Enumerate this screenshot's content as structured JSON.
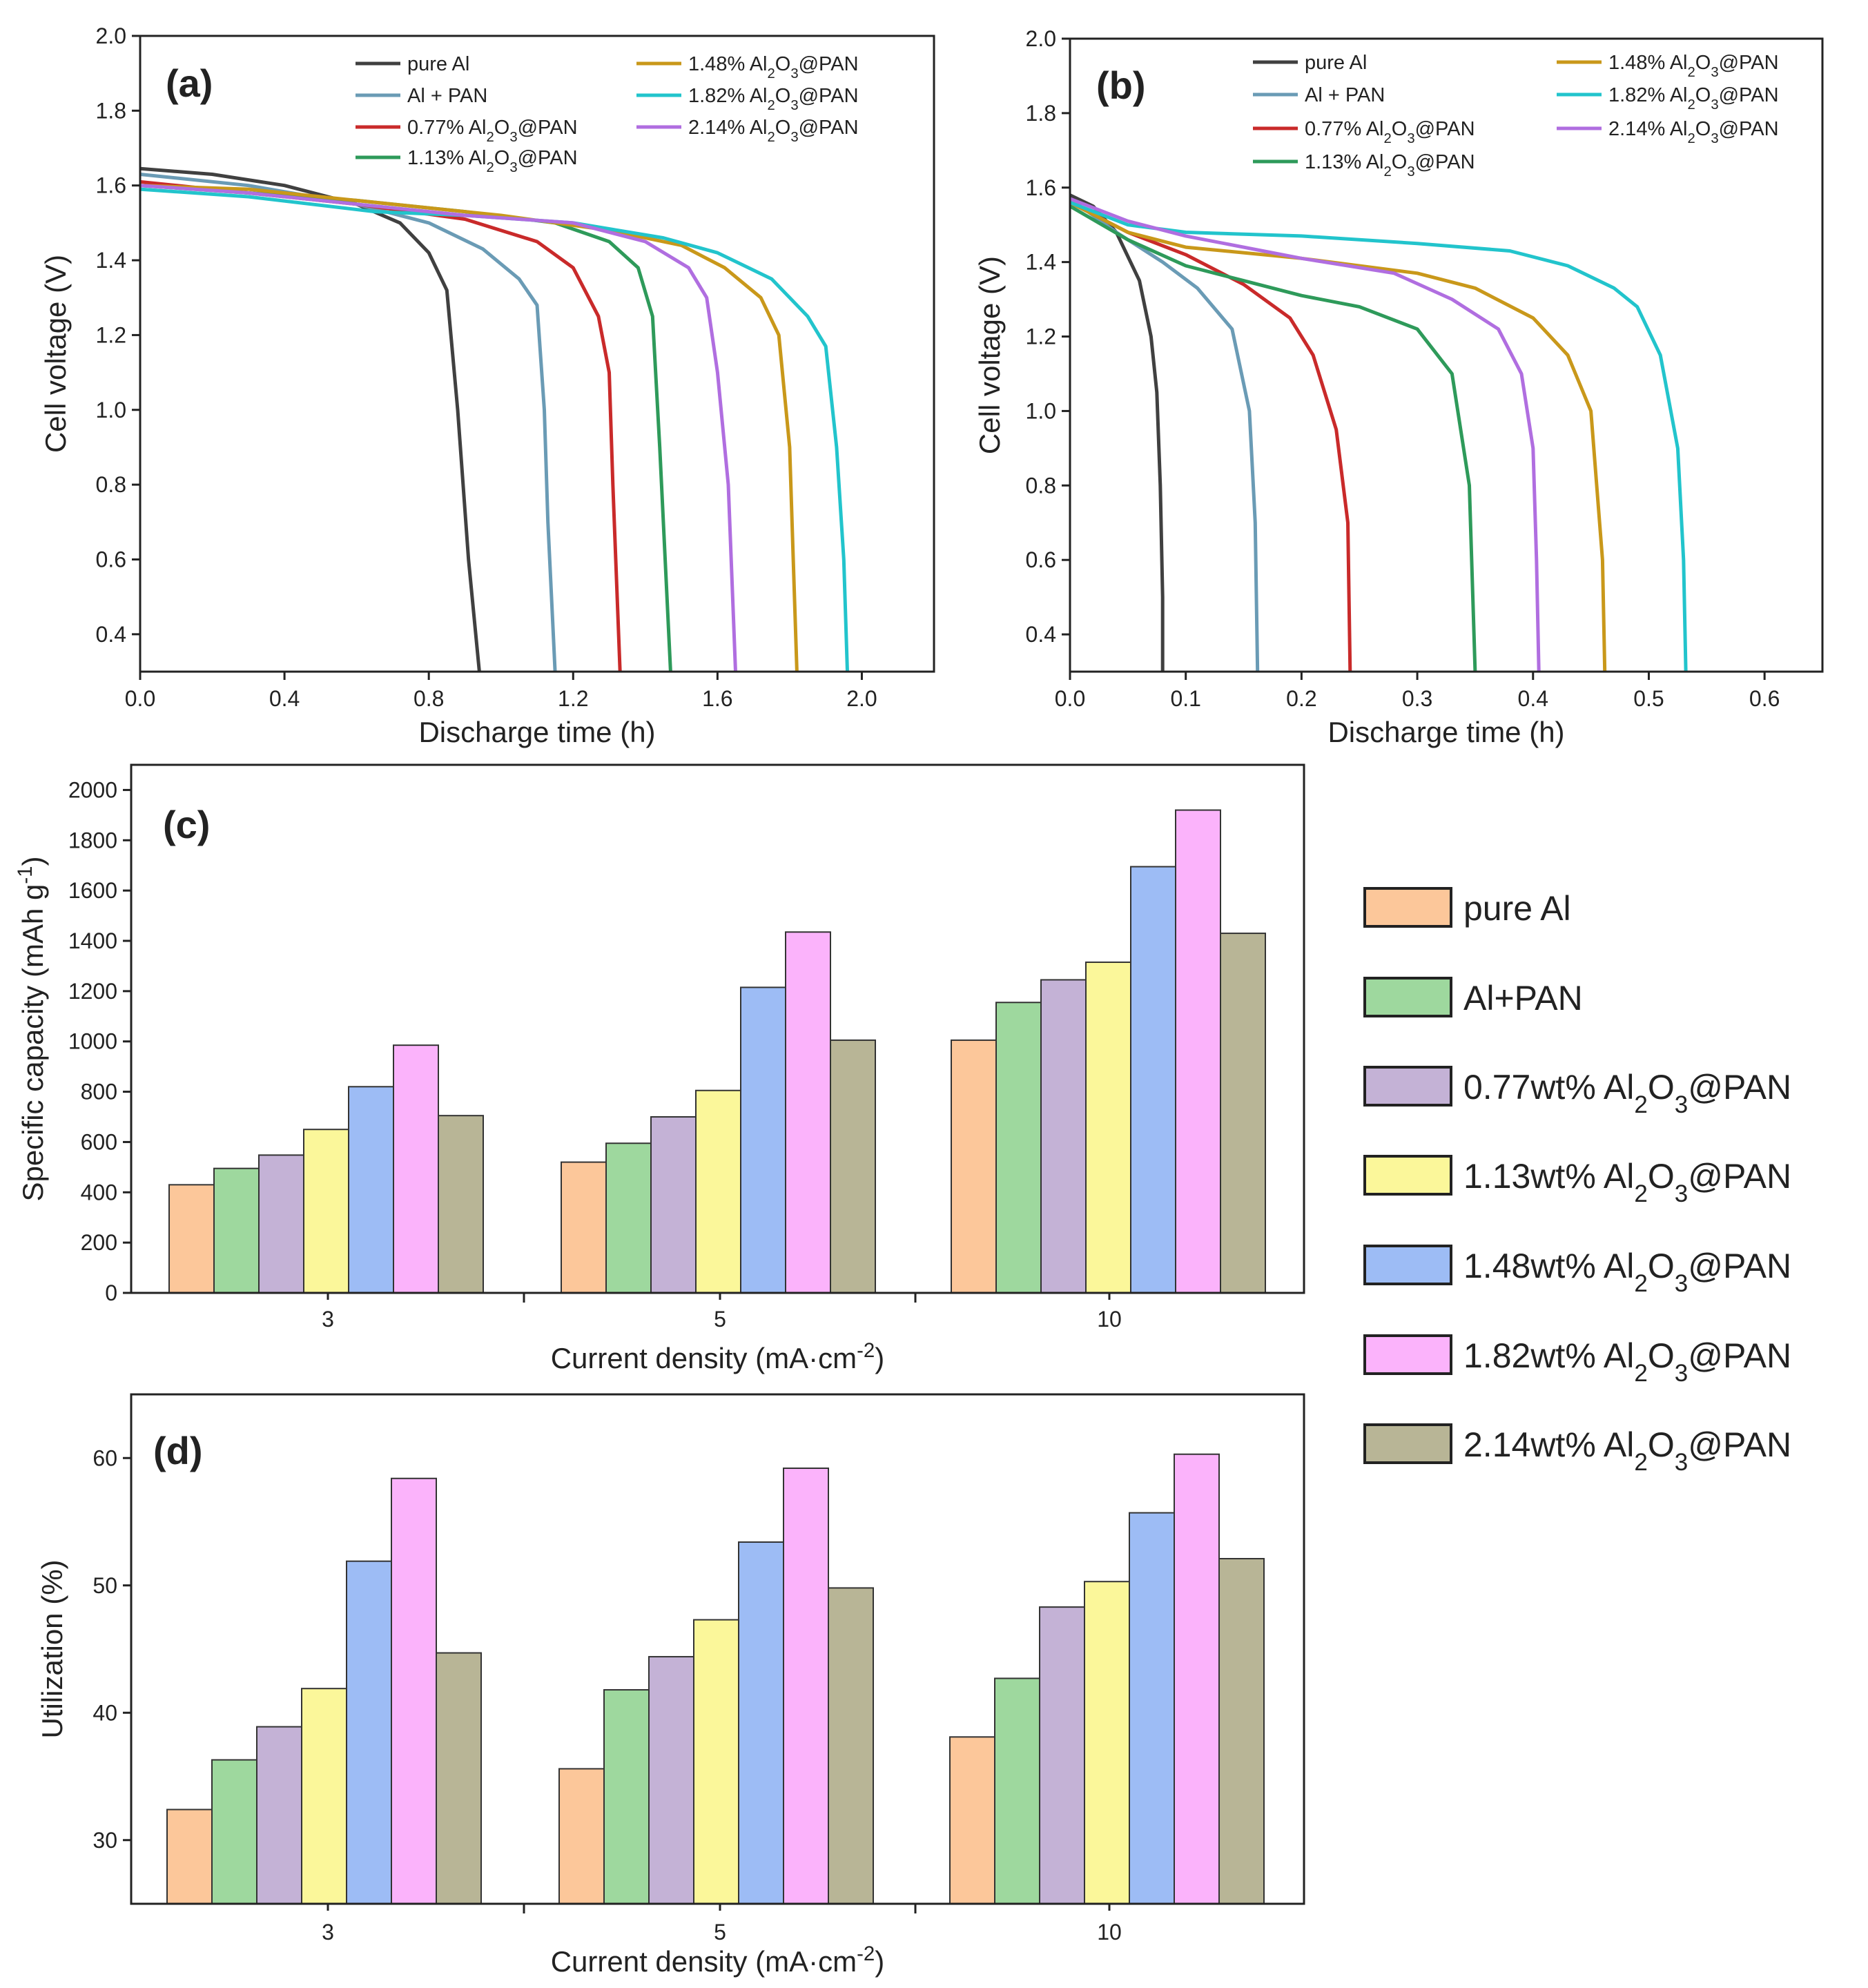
{
  "figure": {
    "line_series_names": [
      "pure Al",
      "Al + PAN",
      "0.77% Al2O3@PAN",
      "1.13% Al2O3@PAN",
      "1.48% Al2O3@PAN",
      "1.82% Al2O3@PAN",
      "2.14% Al2O3@PAN"
    ],
    "bar_series_names": [
      "pure Al",
      "Al+PAN",
      "0.77wt% Al2O3@PAN",
      "1.13wt% Al2O3@PAN",
      "1.48wt% Al2O3@PAN",
      "1.82wt% Al2O3@PAN",
      "2.14wt% Al2O3@PAN"
    ],
    "line_colors": [
      "#404040",
      "#6a9bb5",
      "#c92a2a",
      "#2e9a5a",
      "#c9981a",
      "#22c4cc",
      "#b06ee0"
    ],
    "bar_colors": [
      "#fcc79a",
      "#9ed89e",
      "#c4b2d6",
      "#fbf79a",
      "#9dbcf5",
      "#fbb3fb",
      "#b8b596"
    ]
  },
  "chart_data": [
    {
      "panel": "(a)",
      "type": "line",
      "xlabel": "Discharge time (h)",
      "ylabel": "Cell voltage (V)",
      "xlim": [
        0,
        2.2
      ],
      "ylim": [
        0.3,
        2.0
      ],
      "xticks": [
        "0.0",
        "0.4",
        "0.8",
        "1.2",
        "1.6",
        "2.0"
      ],
      "yticks": [
        "0.4",
        "0.6",
        "0.8",
        "1.0",
        "1.2",
        "1.4",
        "1.6",
        "1.8",
        "2.0"
      ],
      "legend": "top",
      "series": [
        {
          "name": "pure Al",
          "points": [
            [
              0,
              1.645
            ],
            [
              0.2,
              1.63
            ],
            [
              0.4,
              1.6
            ],
            [
              0.6,
              1.55
            ],
            [
              0.72,
              1.5
            ],
            [
              0.8,
              1.42
            ],
            [
              0.85,
              1.32
            ],
            [
              0.88,
              1.0
            ],
            [
              0.91,
              0.6
            ],
            [
              0.94,
              0.3
            ]
          ]
        },
        {
          "name": "Al + PAN",
          "points": [
            [
              0,
              1.63
            ],
            [
              0.3,
              1.6
            ],
            [
              0.6,
              1.55
            ],
            [
              0.8,
              1.5
            ],
            [
              0.95,
              1.43
            ],
            [
              1.05,
              1.35
            ],
            [
              1.1,
              1.28
            ],
            [
              1.12,
              1.0
            ],
            [
              1.13,
              0.7
            ],
            [
              1.15,
              0.3
            ]
          ]
        },
        {
          "name": "0.77% Al2O3@PAN",
          "points": [
            [
              0,
              1.61
            ],
            [
              0.3,
              1.58
            ],
            [
              0.6,
              1.55
            ],
            [
              0.9,
              1.51
            ],
            [
              1.1,
              1.45
            ],
            [
              1.2,
              1.38
            ],
            [
              1.27,
              1.25
            ],
            [
              1.3,
              1.1
            ],
            [
              1.31,
              0.8
            ],
            [
              1.33,
              0.3
            ]
          ]
        },
        {
          "name": "1.13% Al2O3@PAN",
          "points": [
            [
              0,
              1.6
            ],
            [
              0.3,
              1.58
            ],
            [
              0.6,
              1.56
            ],
            [
              0.9,
              1.53
            ],
            [
              1.15,
              1.5
            ],
            [
              1.3,
              1.45
            ],
            [
              1.38,
              1.38
            ],
            [
              1.42,
              1.25
            ],
            [
              1.44,
              0.9
            ],
            [
              1.47,
              0.3
            ]
          ]
        },
        {
          "name": "1.48% Al2O3@PAN",
          "points": [
            [
              0,
              1.6
            ],
            [
              0.3,
              1.59
            ],
            [
              0.6,
              1.56
            ],
            [
              1.0,
              1.52
            ],
            [
              1.3,
              1.48
            ],
            [
              1.5,
              1.44
            ],
            [
              1.62,
              1.38
            ],
            [
              1.72,
              1.3
            ],
            [
              1.77,
              1.2
            ],
            [
              1.8,
              0.9
            ],
            [
              1.81,
              0.6
            ],
            [
              1.82,
              0.3
            ]
          ]
        },
        {
          "name": "1.82% Al2O3@PAN",
          "points": [
            [
              0,
              1.59
            ],
            [
              0.3,
              1.57
            ],
            [
              0.65,
              1.53
            ],
            [
              0.9,
              1.52
            ],
            [
              1.2,
              1.5
            ],
            [
              1.45,
              1.46
            ],
            [
              1.6,
              1.42
            ],
            [
              1.75,
              1.35
            ],
            [
              1.85,
              1.25
            ],
            [
              1.9,
              1.17
            ],
            [
              1.93,
              0.9
            ],
            [
              1.95,
              0.6
            ],
            [
              1.96,
              0.3
            ]
          ]
        },
        {
          "name": "2.14% Al2O3@PAN",
          "points": [
            [
              0,
              1.6
            ],
            [
              0.3,
              1.58
            ],
            [
              0.6,
              1.55
            ],
            [
              0.9,
              1.52
            ],
            [
              1.2,
              1.5
            ],
            [
              1.4,
              1.45
            ],
            [
              1.52,
              1.38
            ],
            [
              1.57,
              1.3
            ],
            [
              1.6,
              1.1
            ],
            [
              1.63,
              0.8
            ],
            [
              1.65,
              0.3
            ]
          ]
        }
      ]
    },
    {
      "panel": "(b)",
      "type": "line",
      "xlabel": "Discharge time (h)",
      "ylabel": "Cell voltage (V)",
      "xlim": [
        0,
        0.65
      ],
      "ylim": [
        0.3,
        2.0
      ],
      "xticks": [
        "0.0",
        "0.1",
        "0.2",
        "0.3",
        "0.4",
        "0.5",
        "0.6"
      ],
      "yticks": [
        "0.4",
        "0.6",
        "0.8",
        "1.0",
        "1.2",
        "1.4",
        "1.6",
        "1.8",
        "2.0"
      ],
      "legend": "top",
      "series": [
        {
          "name": "pure Al",
          "points": [
            [
              0,
              1.58
            ],
            [
              0.02,
              1.55
            ],
            [
              0.04,
              1.48
            ],
            [
              0.06,
              1.35
            ],
            [
              0.07,
              1.2
            ],
            [
              0.075,
              1.05
            ],
            [
              0.078,
              0.8
            ],
            [
              0.08,
              0.5
            ],
            [
              0.08,
              0.3
            ]
          ]
        },
        {
          "name": "Al + PAN",
          "points": [
            [
              0,
              1.57
            ],
            [
              0.04,
              1.48
            ],
            [
              0.08,
              1.4
            ],
            [
              0.11,
              1.33
            ],
            [
              0.14,
              1.22
            ],
            [
              0.155,
              1.0
            ],
            [
              0.16,
              0.7
            ],
            [
              0.162,
              0.3
            ]
          ]
        },
        {
          "name": "0.77% Al2O3@PAN",
          "points": [
            [
              0,
              1.56
            ],
            [
              0.05,
              1.48
            ],
            [
              0.1,
              1.42
            ],
            [
              0.15,
              1.34
            ],
            [
              0.19,
              1.25
            ],
            [
              0.21,
              1.15
            ],
            [
              0.23,
              0.95
            ],
            [
              0.24,
              0.7
            ],
            [
              0.242,
              0.3
            ]
          ]
        },
        {
          "name": "1.13% Al2O3@PAN",
          "points": [
            [
              0,
              1.55
            ],
            [
              0.05,
              1.46
            ],
            [
              0.1,
              1.39
            ],
            [
              0.15,
              1.35
            ],
            [
              0.2,
              1.31
            ],
            [
              0.25,
              1.28
            ],
            [
              0.3,
              1.22
            ],
            [
              0.33,
              1.1
            ],
            [
              0.345,
              0.8
            ],
            [
              0.35,
              0.3
            ]
          ]
        },
        {
          "name": "1.48% Al2O3@PAN",
          "points": [
            [
              0,
              1.56
            ],
            [
              0.05,
              1.48
            ],
            [
              0.1,
              1.44
            ],
            [
              0.2,
              1.41
            ],
            [
              0.3,
              1.37
            ],
            [
              0.35,
              1.33
            ],
            [
              0.4,
              1.25
            ],
            [
              0.43,
              1.15
            ],
            [
              0.45,
              1.0
            ],
            [
              0.455,
              0.8
            ],
            [
              0.46,
              0.6
            ],
            [
              0.462,
              0.3
            ]
          ]
        },
        {
          "name": "1.82% Al2O3@PAN",
          "points": [
            [
              0,
              1.56
            ],
            [
              0.05,
              1.5
            ],
            [
              0.1,
              1.48
            ],
            [
              0.2,
              1.47
            ],
            [
              0.3,
              1.45
            ],
            [
              0.38,
              1.43
            ],
            [
              0.43,
              1.39
            ],
            [
              0.47,
              1.33
            ],
            [
              0.49,
              1.28
            ],
            [
              0.51,
              1.15
            ],
            [
              0.525,
              0.9
            ],
            [
              0.53,
              0.6
            ],
            [
              0.532,
              0.3
            ]
          ]
        },
        {
          "name": "2.14% Al2O3@PAN",
          "points": [
            [
              0,
              1.57
            ],
            [
              0.05,
              1.51
            ],
            [
              0.1,
              1.47
            ],
            [
              0.2,
              1.41
            ],
            [
              0.28,
              1.37
            ],
            [
              0.33,
              1.3
            ],
            [
              0.37,
              1.22
            ],
            [
              0.39,
              1.1
            ],
            [
              0.4,
              0.9
            ],
            [
              0.403,
              0.6
            ],
            [
              0.405,
              0.3
            ]
          ]
        }
      ]
    },
    {
      "panel": "(c)",
      "type": "bar",
      "xlabel": "Current density (mA·cm⁻²)",
      "ylabel": "Specific capacity (mAh g⁻¹)",
      "ylim": [
        0,
        2100
      ],
      "yticks": [
        "0",
        "200",
        "400",
        "600",
        "800",
        "1000",
        "1200",
        "1400",
        "1600",
        "1800",
        "2000"
      ],
      "categories": [
        "3",
        "5",
        "10"
      ],
      "legend": "right",
      "series": [
        {
          "name": "pure Al",
          "values": [
            430,
            520,
            1005
          ]
        },
        {
          "name": "Al+PAN",
          "values": [
            495,
            595,
            1155
          ]
        },
        {
          "name": "0.77wt% Al2O3@PAN",
          "values": [
            548,
            700,
            1245
          ]
        },
        {
          "name": "1.13wt% Al2O3@PAN",
          "values": [
            650,
            805,
            1315
          ]
        },
        {
          "name": "1.48wt% Al2O3@PAN",
          "values": [
            820,
            1215,
            1695
          ]
        },
        {
          "name": "1.82wt% Al2O3@PAN",
          "values": [
            985,
            1435,
            1920
          ]
        },
        {
          "name": "2.14wt% Al2O3@PAN",
          "values": [
            705,
            1005,
            1430
          ]
        }
      ]
    },
    {
      "panel": "(d)",
      "type": "bar",
      "xlabel": "Current density (mA·cm⁻²)",
      "ylabel": "Utilization (%)",
      "ylim": [
        25,
        65
      ],
      "yticks": [
        "30",
        "40",
        "50",
        "60"
      ],
      "categories": [
        "3",
        "5",
        "10"
      ],
      "series": [
        {
          "name": "pure Al",
          "values": [
            32.4,
            35.6,
            38.1
          ]
        },
        {
          "name": "Al+PAN",
          "values": [
            36.3,
            41.8,
            42.7
          ]
        },
        {
          "name": "0.77wt% Al2O3@PAN",
          "values": [
            38.9,
            44.4,
            48.3
          ]
        },
        {
          "name": "1.13wt% Al2O3@PAN",
          "values": [
            41.9,
            47.3,
            50.3
          ]
        },
        {
          "name": "1.48wt% Al2O3@PAN",
          "values": [
            51.9,
            53.4,
            55.7
          ]
        },
        {
          "name": "1.82wt% Al2O3@PAN",
          "values": [
            58.4,
            59.2,
            60.3
          ]
        },
        {
          "name": "2.14wt% Al2O3@PAN",
          "values": [
            44.7,
            49.8,
            52.1
          ]
        }
      ]
    }
  ]
}
